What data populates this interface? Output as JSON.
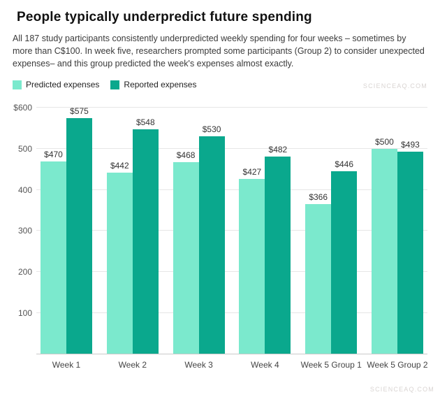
{
  "header": {
    "title": "People typically underpredict future spending",
    "description": "All 187 study participants consistently underpredicted weekly spending for four weeks – sometimes by more than C$100. In week five, researchers prompted some participants (Group 2) to consider unexpected expenses– and this group predicted the week's expenses almost exactly."
  },
  "legend": [
    {
      "label": "Predicted expenses",
      "color": "#7be9cd"
    },
    {
      "label": "Reported expenses",
      "color": "#0aa88d"
    }
  ],
  "watermark": "SCIENCEAQ.COM",
  "chart_data": {
    "type": "bar",
    "title": "People typically underpredict future spending",
    "categories": [
      "Week 1",
      "Week 2",
      "Week 3",
      "Week 4",
      "Week 5 Group 1",
      "Week 5 Group 2"
    ],
    "series": [
      {
        "name": "Predicted expenses",
        "color": "#7be9cd",
        "values": [
          470,
          442,
          468,
          427,
          366,
          500
        ]
      },
      {
        "name": "Reported expenses",
        "color": "#0aa88d",
        "values": [
          575,
          548,
          530,
          482,
          446,
          493
        ]
      }
    ],
    "xlabel": "",
    "ylabel": "",
    "ylim": [
      0,
      600
    ],
    "yticks": [
      {
        "value": 600,
        "label": "$600"
      },
      {
        "value": 500,
        "label": "500"
      },
      {
        "value": 400,
        "label": "400"
      },
      {
        "value": 300,
        "label": "300"
      },
      {
        "value": 200,
        "label": "200"
      },
      {
        "value": 100,
        "label": "100"
      }
    ],
    "grid": true,
    "legend_position": "top-left",
    "value_label_prefix": "$"
  }
}
